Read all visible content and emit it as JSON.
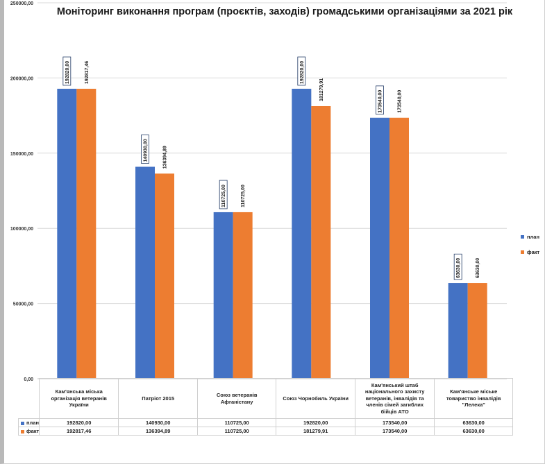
{
  "chart_data": {
    "type": "bar",
    "title": "Моніторинг виконання програм (проєктів, заходів) громадськими організаціями за 2021 рік",
    "categories": [
      "Кам'янська міська організація ветеранів України",
      "Патріот 2015",
      "Союз ветеранів Афганістану",
      "Союз Чорнобиль України",
      "Кам'янський штаб національного захисту ветеранів, інвалідів та членів сімей загиблих бійців АТО",
      "Кам'янське міське товариство інвалідів \"Лелека\""
    ],
    "series": [
      {
        "name": "план",
        "color": "#4472C4",
        "values": [
          192820.0,
          140930.0,
          110725.0,
          192820.0,
          173540.0,
          63630.0
        ],
        "labels": [
          "192820,00",
          "140930,00",
          "110725,00",
          "192820,00",
          "173540,00",
          "63630,00"
        ],
        "table_values": [
          "192820,00",
          "140930,00",
          "110725,00",
          "192820,00",
          "173540,00",
          "63630,00"
        ]
      },
      {
        "name": "факт",
        "color": "#ED7D31",
        "values": [
          192817.46,
          136394.89,
          110725.0,
          181279.91,
          173540.0,
          63630.0
        ],
        "labels": [
          "192817,46",
          "136394,89",
          "110725,00",
          "181279,91",
          "173540,00",
          "63630,00"
        ],
        "table_values": [
          "192817,46",
          "136394,89",
          "110725,00",
          "181279,91",
          "173540,00",
          "63630,00"
        ]
      }
    ],
    "ylim": [
      0,
      250000
    ],
    "yticks": [
      0,
      50000,
      100000,
      150000,
      200000,
      250000
    ],
    "ytick_labels": [
      "0,00",
      "50000,00",
      "100000,00",
      "150000,00",
      "200000,00",
      "250000,00"
    ],
    "grid": true,
    "legend": "right",
    "data_table": true
  }
}
